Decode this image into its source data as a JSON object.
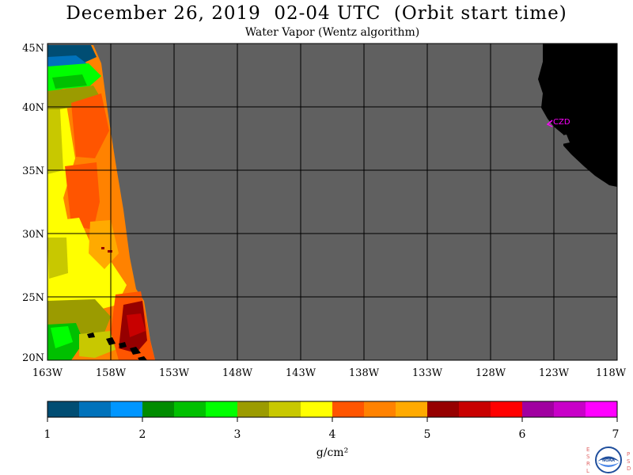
{
  "title": "December 26, 2019  02-04 UTC  (Orbit start time)",
  "subtitle": "Water Vapor (Wentz algorithm)",
  "station_label": "CZD",
  "lat_labels": [
    "45N",
    "40N",
    "35N",
    "30N",
    "25N",
    "20N"
  ],
  "lon_labels": [
    "163W",
    "158W",
    "153W",
    "148W",
    "143W",
    "138W",
    "133W",
    "128W",
    "123W",
    "118W"
  ],
  "colorbar": {
    "ticks": [
      "1",
      "2",
      "3",
      "4",
      "5",
      "6",
      "7"
    ],
    "unit": "g/cm²",
    "colors": [
      "#004d73",
      "#0072bb",
      "#0096ff",
      "#008c00",
      "#00c000",
      "#00ff00",
      "#9b9b00",
      "#c8c800",
      "#ffff00",
      "#ff5500",
      "#ff8200",
      "#ffaa00",
      "#960000",
      "#c80000",
      "#ff0000",
      "#a000a0",
      "#c800c8",
      "#ff00ff"
    ]
  },
  "logo": {
    "left_letters": [
      "E",
      "S",
      "R",
      "L"
    ],
    "right_letters": [
      "P",
      "S",
      "D"
    ],
    "center": "NOAA"
  },
  "colors": {
    "no_data": "#606060",
    "land": "#000000",
    "station": "#ff00ff"
  }
}
